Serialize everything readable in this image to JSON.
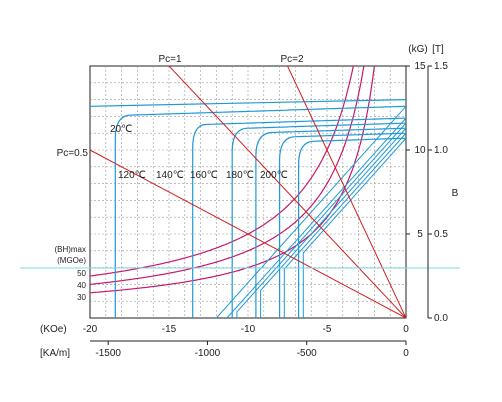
{
  "chart_data": {
    "type": "line",
    "colors": {
      "demag": "#1e9ad6",
      "energy": "#c8186b",
      "loadline": "#d21f1f",
      "grid": "#999999",
      "marker": "#7fd7ea"
    },
    "x_axis_koe": {
      "label": "(KOe)",
      "range": [
        -20,
        0
      ],
      "ticks": [
        "-20",
        "-15",
        "-10",
        "-5",
        "0"
      ]
    },
    "x_axis_kam": {
      "label": "[KA/m]",
      "ticks": [
        "-1500",
        "-1000",
        "-500",
        "0"
      ]
    },
    "y_axis_kg": {
      "label": "(kG)",
      "range": [
        0,
        15
      ],
      "ticks": [
        "5",
        "10",
        "15"
      ]
    },
    "y_axis_t": {
      "label": "[T]",
      "range": [
        0,
        1.5
      ],
      "ticks": [
        "0.0",
        "0.5",
        "1.0",
        "1.5"
      ]
    },
    "b_label": "B",
    "energy_axis": {
      "label1": "(BH)max",
      "label2": "(MGOe)",
      "ticks": [
        "50",
        "40",
        "30"
      ],
      "curves": [
        50,
        40,
        30
      ]
    },
    "load_lines": [
      {
        "label": "Pc=1",
        "pc": 1
      },
      {
        "label": "Pc=2",
        "pc": 2
      },
      {
        "label": "Pc=0.5",
        "pc": 0.5
      }
    ],
    "temperatures": [
      {
        "label": "20℃",
        "br": 12.6,
        "hcj": -18.4
      },
      {
        "label": "120℃",
        "br": 11.9,
        "hcj": -13.5
      },
      {
        "label": "140℃",
        "br": 11.6,
        "hcj": -11.0
      },
      {
        "label": "160℃",
        "br": 11.3,
        "hcj": -9.5
      },
      {
        "label": "180℃",
        "br": 11.0,
        "hcj": -8.0
      },
      {
        "label": "200℃",
        "br": 10.7,
        "hcj": -6.8
      }
    ],
    "grid": true
  }
}
